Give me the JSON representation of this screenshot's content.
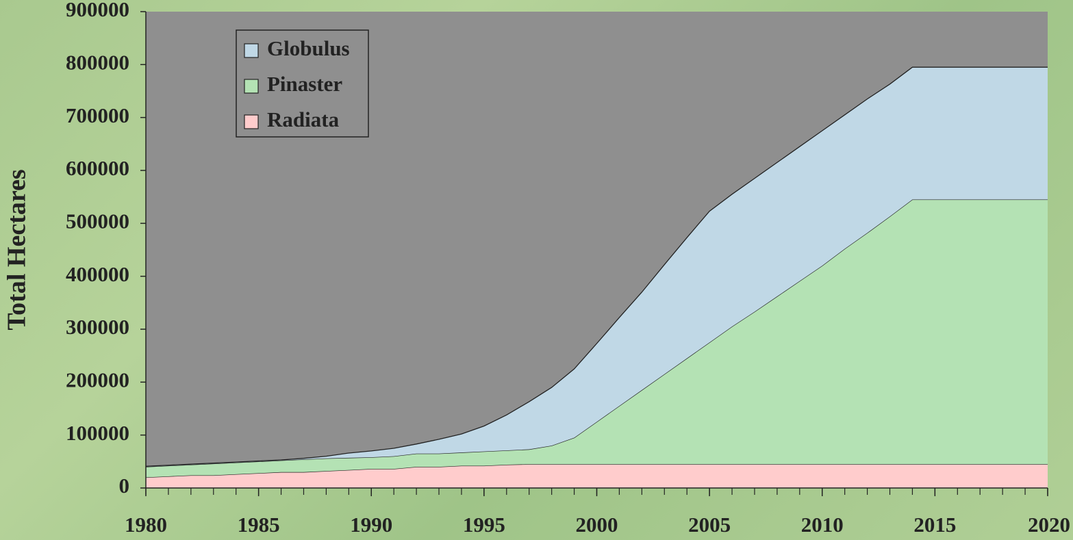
{
  "chart_data": {
    "type": "stacked-area",
    "y_label": "Total Hectares",
    "x": [
      1980,
      1981,
      1982,
      1983,
      1984,
      1985,
      1986,
      1987,
      1988,
      1989,
      1990,
      1991,
      1992,
      1993,
      1994,
      1995,
      1996,
      1997,
      1998,
      1999,
      2000,
      2001,
      2002,
      2003,
      2004,
      2005,
      2006,
      2007,
      2008,
      2009,
      2010,
      2011,
      2012,
      2013,
      2014,
      2015,
      2016,
      2017,
      2018,
      2019,
      2020
    ],
    "series": [
      {
        "name": "Radiata",
        "color": "#ffcccc",
        "values": [
          20000,
          22000,
          24000,
          24000,
          26000,
          28000,
          30000,
          30000,
          32000,
          34000,
          36000,
          36000,
          40000,
          40000,
          42000,
          42000,
          44000,
          45000,
          45000,
          45000,
          45000,
          45000,
          45000,
          45000,
          45000,
          45000,
          45000,
          45000,
          45000,
          45000,
          45000,
          45000,
          45000,
          45000,
          45000,
          45000,
          45000,
          45000,
          45000,
          45000,
          45000
        ]
      },
      {
        "name": "Pinaster",
        "color": "#b4e2b4",
        "values": [
          20000,
          20000,
          20000,
          22000,
          22000,
          22000,
          22000,
          24000,
          24000,
          23000,
          22000,
          24000,
          25000,
          25000,
          25000,
          27000,
          27000,
          28000,
          35000,
          50000,
          80000,
          110000,
          140000,
          170000,
          200000,
          230000,
          260000,
          288000,
          317000,
          346000,
          375000,
          407000,
          437000,
          468000,
          500000,
          500000,
          500000,
          500000,
          500000,
          500000,
          500000
        ]
      },
      {
        "name": "Globulus",
        "color": "#c0d8e6",
        "values": [
          1000,
          1000,
          1000,
          1000,
          1000,
          1000,
          1000,
          2000,
          4000,
          9000,
          12000,
          15000,
          18000,
          27000,
          35000,
          48000,
          67000,
          90000,
          110000,
          130000,
          148000,
          167000,
          185000,
          207000,
          228000,
          248000,
          250000,
          252000,
          253000,
          254000,
          255000,
          253000,
          253000,
          250000,
          250000,
          250000,
          250000,
          250000,
          250000,
          250000,
          250000
        ]
      }
    ],
    "xlim": [
      1980,
      2020
    ],
    "xticks": [
      1980,
      1985,
      1990,
      1995,
      2000,
      2005,
      2010,
      2015,
      2020
    ],
    "ylim": [
      0,
      900000
    ],
    "yticks": [
      0,
      100000,
      200000,
      300000,
      400000,
      500000,
      600000,
      700000,
      800000,
      900000
    ],
    "plot_background": "#8f8f8f",
    "legend": "upper left"
  }
}
